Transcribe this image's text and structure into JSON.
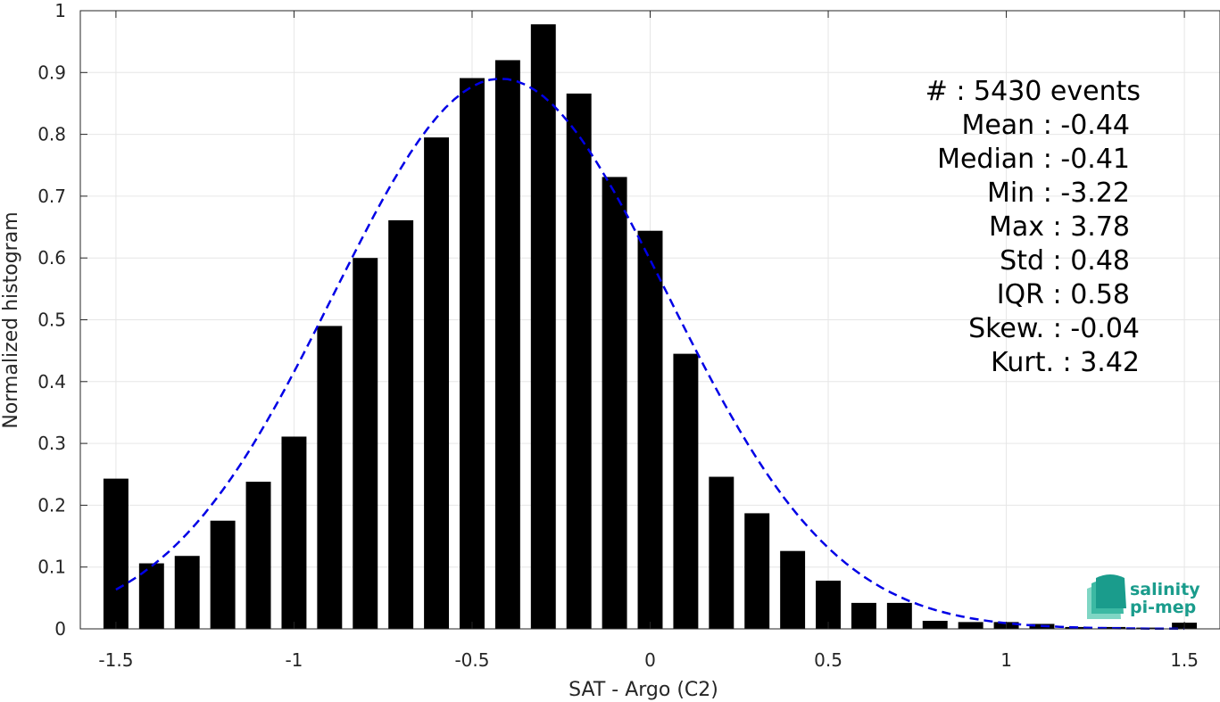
{
  "chart_data": {
    "type": "bar",
    "xlabel": "SAT - Argo (C2)",
    "ylabel": "Normalized histogram",
    "xlim": [
      -1.6,
      1.6
    ],
    "ylim": [
      0,
      1
    ],
    "xticks": [
      -1.5,
      -1,
      -0.5,
      0,
      0.5,
      1,
      1.5
    ],
    "xtick_labels": [
      "-1.5",
      "-1",
      "-0.5",
      "0",
      "0.5",
      "1",
      "1.5"
    ],
    "yticks": [
      0,
      0.1,
      0.2,
      0.3,
      0.4,
      0.5,
      0.6,
      0.7,
      0.8,
      0.9,
      1
    ],
    "ytick_labels": [
      "0",
      "0.1",
      "0.2",
      "0.3",
      "0.4",
      "0.5",
      "0.6",
      "0.7",
      "0.8",
      "0.9",
      "1"
    ],
    "grid": true,
    "bar_color": "#000000",
    "bar_width": 0.07,
    "series": [
      {
        "x": [
          -1.5,
          -1.4,
          -1.3,
          -1.2,
          -1.1,
          -1.0,
          -0.9,
          -0.8,
          -0.7,
          -0.6,
          -0.5,
          -0.4,
          -0.3,
          -0.2,
          -0.1,
          0.0,
          0.1,
          0.2,
          0.3,
          0.4,
          0.5,
          0.6,
          0.7,
          0.8,
          0.9,
          1.0,
          1.1,
          1.2,
          1.3,
          1.4,
          1.5
        ],
        "values": [
          0.243,
          0.106,
          0.118,
          0.175,
          0.238,
          0.311,
          0.49,
          0.6,
          0.661,
          0.795,
          0.891,
          0.92,
          0.978,
          0.866,
          0.731,
          0.644,
          0.445,
          0.246,
          0.187,
          0.126,
          0.078,
          0.042,
          0.042,
          0.013,
          0.011,
          0.011,
          0.008,
          0.003,
          0.003,
          0.002,
          0.01
        ]
      }
    ],
    "fit_curve": {
      "type": "gaussian",
      "style": "dashed",
      "color": "#0000e6",
      "mean": -0.42,
      "std": 0.47,
      "peak": 0.89,
      "x_range": [
        -1.5,
        1.5
      ]
    },
    "annotation": [
      {
        "label": "#  ",
        "value": ": 5430 events"
      },
      {
        "label": "Mean",
        "value": ": -0.44"
      },
      {
        "label": "Median",
        "value": ": -0.41"
      },
      {
        "label": "Min",
        "value": ": -3.22"
      },
      {
        "label": "Max",
        "value": ": 3.78"
      },
      {
        "label": "Std",
        "value": ": 0.48"
      },
      {
        "label": "IQR",
        "value": ": 0.58"
      },
      {
        "label": "Skew.",
        "value": ": -0.04"
      },
      {
        "label": "Kurt.",
        "value": ": 3.42"
      }
    ]
  },
  "logo": {
    "line1": "salinity",
    "line2": "pi-mep",
    "color": "#1a9c8c"
  }
}
